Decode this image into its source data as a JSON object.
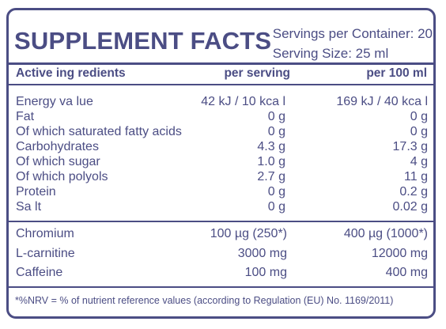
{
  "title": "SUPPLEMENT FACTS",
  "servings_per_container": "Servings per Container: 20",
  "serving_size": "Serving Size: 25 ml",
  "header": {
    "active_ingredients": "Active ing redients",
    "per_serving": "per serving",
    "per_100ml": "per 100 ml"
  },
  "nutrients": [
    {
      "name": "Energy  va lue",
      "per_serving": "42 kJ / 10 kca l",
      "per_100ml": "169 kJ / 40 kca l"
    },
    {
      "name": "Fat",
      "per_serving": "0 g",
      "per_100ml": "0 g"
    },
    {
      "name": "Of which saturated fatty acids",
      "per_serving": "0 g",
      "per_100ml": "0 g"
    },
    {
      "name": "Carbohydrates",
      "per_serving": "4.3 g",
      "per_100ml": "17.3 g"
    },
    {
      "name": "Of which sugar",
      "per_serving": "1.0 g",
      "per_100ml": "4 g"
    },
    {
      "name": "Of which polyols",
      "per_serving": "2.7 g",
      "per_100ml": "11 g"
    },
    {
      "name": "Protein",
      "per_serving": "0 g",
      "per_100ml": "0.2 g"
    },
    {
      "name": "Sa lt",
      "per_serving": "0 g",
      "per_100ml": "0.02 g"
    }
  ],
  "actives": [
    {
      "name": "Chromium",
      "per_serving": "100 µg  (250*)",
      "per_100ml": "400 µg (1000*)"
    },
    {
      "name": "L-carnitine",
      "per_serving": "3000 mg",
      "per_100ml": "12000 mg"
    },
    {
      "name": "Caffeine",
      "per_serving": "100 mg",
      "per_100ml": "400 mg"
    }
  ],
  "footnote": "*%NRV = % of nutrient reference values (according to Regulation (EU) No. 1169/2011)"
}
